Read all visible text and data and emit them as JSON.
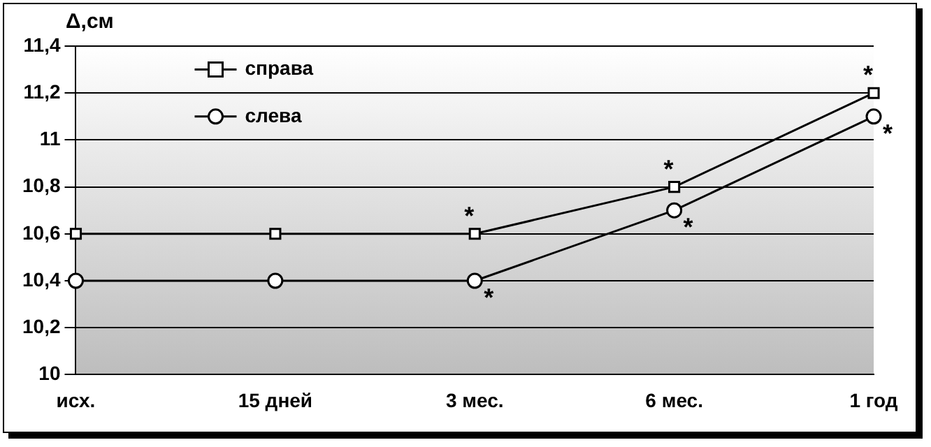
{
  "chart_data": {
    "type": "line",
    "ylabel": "Δ,см",
    "categories": [
      "исх.",
      "15 дней",
      "3 мес.",
      "6 мес.",
      "1 год"
    ],
    "series": [
      {
        "name": "справа",
        "color": "#000000",
        "marker": "square",
        "values": [
          10.6,
          10.6,
          10.6,
          10.8,
          11.2
        ]
      },
      {
        "name": "слева",
        "color": "#000000",
        "marker": "circle",
        "values": [
          10.4,
          10.4,
          10.4,
          10.7,
          11.1
        ]
      }
    ],
    "ylim": [
      10,
      11.4
    ],
    "yticks": [
      10,
      {
        "value": 10.2,
        "label": "10,2"
      },
      {
        "value": 10.4,
        "label": "10,4"
      },
      {
        "value": 10.6,
        "label": "10,6"
      },
      {
        "value": 10.8,
        "label": "10,8"
      },
      11,
      {
        "value": 11.2,
        "label": "11,2"
      },
      {
        "value": 11.4,
        "label": "11,4"
      }
    ],
    "grid": "y",
    "legend": "top left",
    "line_style": "solid",
    "annotations": [
      {
        "text": "*",
        "x": "3 мес.",
        "y": 10.6
      },
      {
        "text": "*",
        "x": "3 мес.",
        "y": 10.4
      },
      {
        "text": "*",
        "x": "6 мес.",
        "y": 10.8
      },
      {
        "text": "*",
        "x": "6 мес.",
        "y": 10.7
      },
      {
        "text": "*",
        "x": "1 год",
        "y": 11.2
      },
      {
        "text": "*",
        "x": "1 год",
        "y": 11.1
      }
    ]
  }
}
